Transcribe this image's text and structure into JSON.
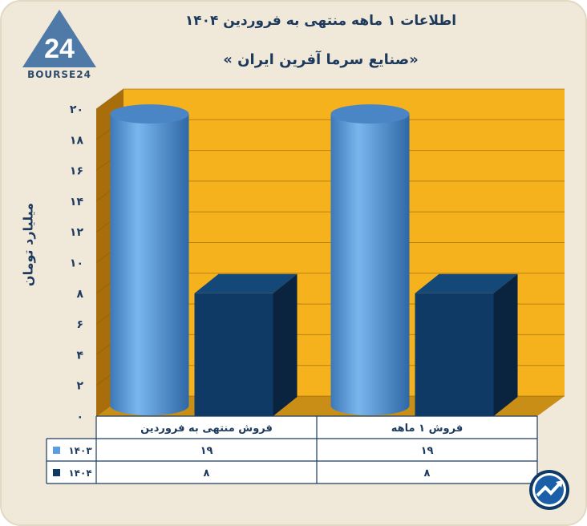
{
  "title": "اطلاعات ۱ ماهه منتهی به فروردین ۱۴۰۴",
  "subtitle": "«صنایع سرما آفرین ایران »",
  "logo_text": "BOURSE24",
  "colors": {
    "series_1403": "#5b9ee0",
    "series_1404": "#0f3a66",
    "plot_back": "#f5b21c",
    "plot_side": "#a86e0c",
    "text": "#1d3a5c"
  },
  "chart_data": {
    "type": "bar",
    "categories": [
      "فروش ۱ ماهه",
      "فروش منتهی به فروردین"
    ],
    "series": [
      {
        "name": "۱۴۰۳",
        "values": [
          19,
          19
        ],
        "value_labels": [
          "۱۹",
          "۱۹"
        ],
        "shape": "cylinder",
        "color": "#5b9ee0"
      },
      {
        "name": "۱۴۰۴",
        "values": [
          8,
          8
        ],
        "value_labels": [
          "۸",
          "۸"
        ],
        "shape": "box",
        "color": "#0f3a66"
      }
    ],
    "ylabel": "میلیارد تومان",
    "ylim": [
      0,
      20
    ],
    "yticks": [
      0,
      2,
      4,
      6,
      8,
      10,
      12,
      14,
      16,
      18,
      20
    ],
    "ytick_labels": [
      "۰",
      "۲",
      "۴",
      "۶",
      "۸",
      "۱۰",
      "۱۲",
      "۱۴",
      "۱۶",
      "۱۸",
      "۲۰"
    ],
    "grid": true,
    "legend": "data-table"
  }
}
